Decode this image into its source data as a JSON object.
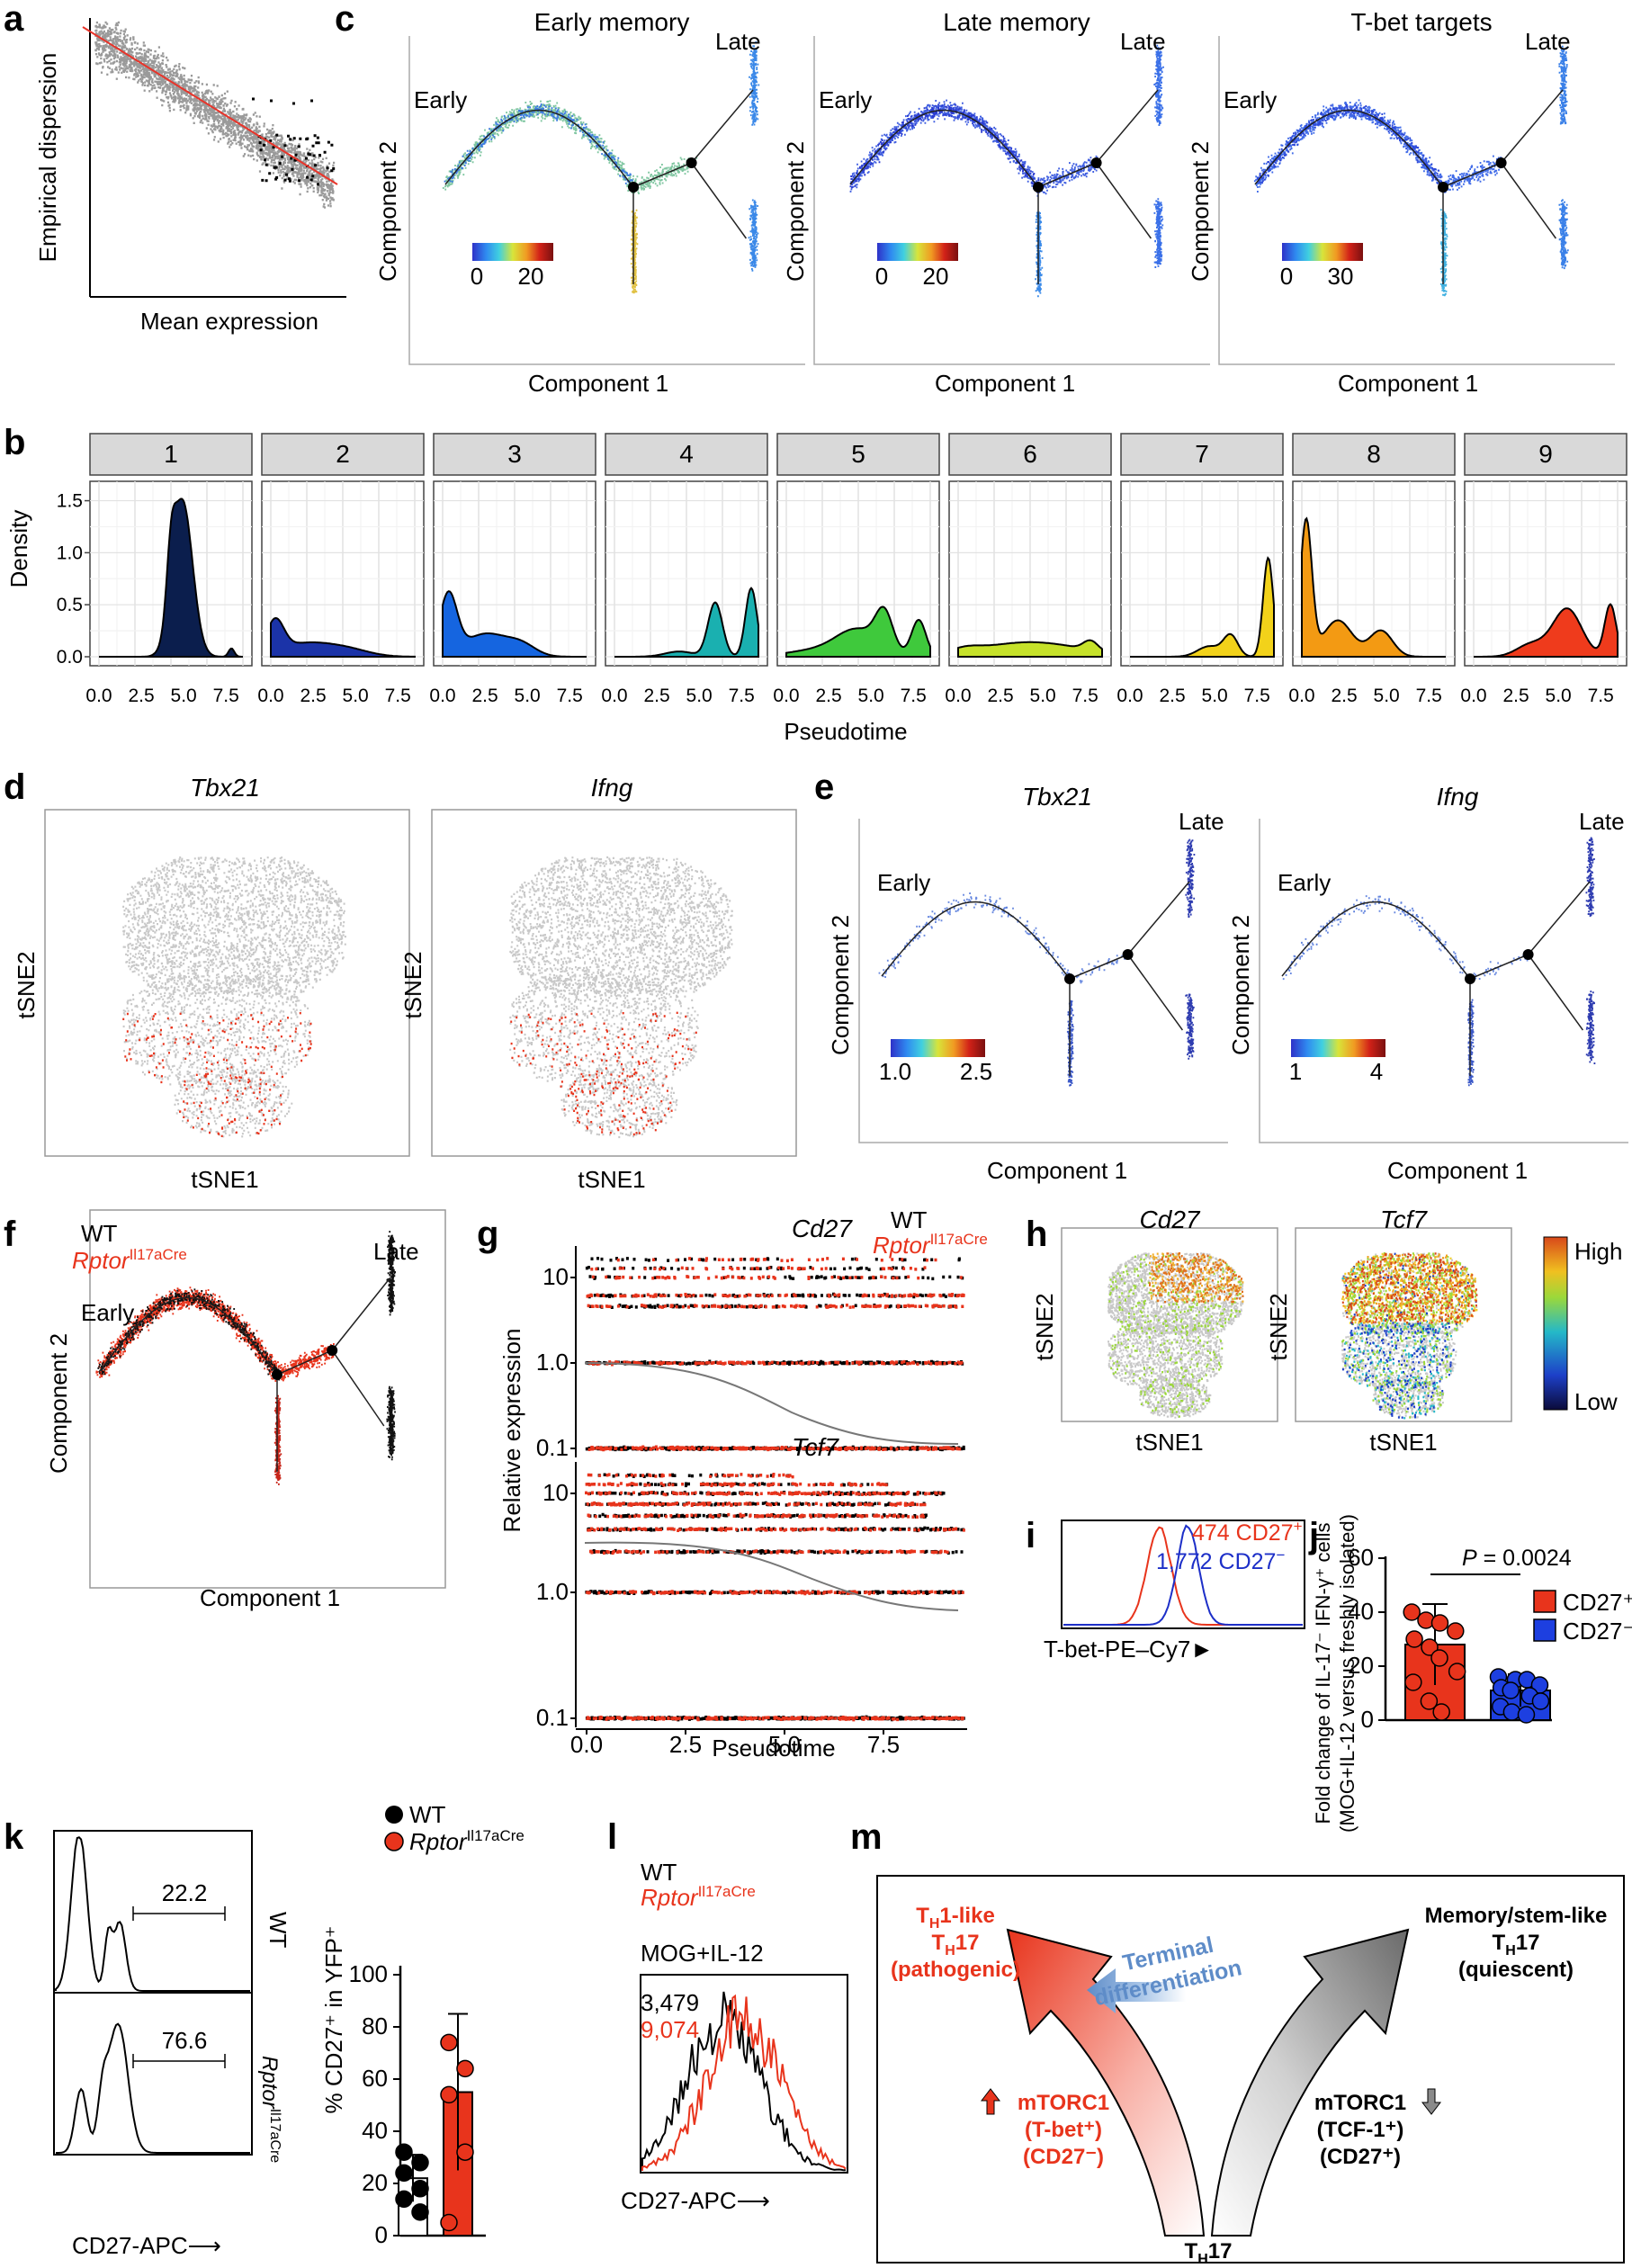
{
  "panel_letters": [
    "a",
    "b",
    "c",
    "d",
    "e",
    "f",
    "g",
    "h",
    "i",
    "j",
    "k",
    "l",
    "m"
  ],
  "panel_a": {
    "ylabel": "Empirical dispersion",
    "xlabel": "Mean expression"
  },
  "panel_c": {
    "plots": [
      {
        "title": "Early memory",
        "scale_min": "0",
        "scale_max": "20"
      },
      {
        "title": "Late memory",
        "scale_min": "0",
        "scale_max": "20"
      },
      {
        "title": "T-bet targets",
        "scale_min": "0",
        "scale_max": "30"
      }
    ],
    "early_label": "Early",
    "late_label": "Late",
    "xlabel": "Component 1",
    "ylabel": "Component 2"
  },
  "panel_b": {
    "facets": [
      "1",
      "2",
      "3",
      "4",
      "5",
      "6",
      "7",
      "8",
      "9"
    ],
    "facet_colors": [
      "#0b1e4d",
      "#1b33a8",
      "#1565e0",
      "#1ab0b0",
      "#3fc93c",
      "#c6e22a",
      "#f2d21a",
      "#f39a13",
      "#ef3b1c"
    ],
    "y_ticks": [
      "0.0",
      "0.5",
      "1.0",
      "1.5"
    ],
    "x_ticks": [
      "0.0",
      "2.5",
      "5.0",
      "7.5"
    ],
    "ylabel": "Density",
    "xlabel": "Pseudotime"
  },
  "panel_d": {
    "plots": [
      {
        "title": "Tbx21"
      },
      {
        "title": "Ifng"
      }
    ],
    "xlabel": "tSNE1",
    "ylabel": "tSNE2"
  },
  "panel_e": {
    "plots": [
      {
        "title": "Tbx21",
        "scale_min": "1.0",
        "scale_max": "2.5"
      },
      {
        "title": "Ifng",
        "scale_min": "1",
        "scale_max": "4"
      }
    ],
    "early_label": "Early",
    "late_label": "Late",
    "xlabel": "Component 1",
    "ylabel": "Component 2"
  },
  "panel_f": {
    "wt_label": "WT",
    "rptor_label": "Rptor",
    "rptor_sup": "Il17aCre",
    "early_label": "Early",
    "late_label": "Late",
    "xlabel": "Component 1",
    "ylabel": "Component 2"
  },
  "panel_g": {
    "gene1": "Cd27",
    "gene2": "Tcf7",
    "wt_label": "WT",
    "rptor_label": "Rptor",
    "rptor_sup": "Il17aCre",
    "y_ticks": [
      "10",
      "1.0",
      "0.1"
    ],
    "x_ticks": [
      "0.0",
      "2.5",
      "5.0",
      "7.5"
    ],
    "ylabel": "Relative expression",
    "xlabel": "Pseudotime"
  },
  "panel_h": {
    "plots": [
      {
        "title": "Cd27"
      },
      {
        "title": "Tcf7"
      }
    ],
    "scale_high": "High",
    "scale_low": "Low",
    "xlabel": "tSNE1",
    "ylabel": "tSNE2"
  },
  "panel_i": {
    "pos_value": "474",
    "pos_label": "CD27",
    "neg_value": "1,772",
    "neg_label": "CD27",
    "xlabel": "T-bet-PE–Cy7"
  },
  "panel_j": {
    "ylabel_line1": "Fold change of IL-17⁻ IFN-γ⁺ cells",
    "ylabel_line2": "(MOG+IL-12 versus freshly isolated)",
    "y_ticks": [
      "0",
      "20",
      "40",
      "60"
    ],
    "p_label": "P",
    "p_value": " = 0.0024",
    "legend": [
      "CD27⁺",
      "CD27⁻"
    ]
  },
  "chart_data": [
    {
      "type": "bar",
      "title": "",
      "categories": [
        "CD27⁺",
        "CD27⁻"
      ],
      "values": [
        28,
        11
      ],
      "errors": [
        15,
        6
      ],
      "ylabel": "Fold change of IL-17⁻ IFN-γ⁺ cells (MOG+IL-12 versus freshly isolated)",
      "ylim": [
        0,
        60
      ],
      "points": [
        [
          40,
          37,
          36,
          33,
          30,
          27,
          23,
          18,
          14,
          7,
          3
        ],
        [
          16,
          15,
          15,
          13,
          12,
          11,
          9,
          7,
          5,
          3,
          2
        ]
      ]
    },
    {
      "type": "bar",
      "title": "",
      "categories": [
        "WT",
        "Rptor Il17aCre"
      ],
      "values": [
        22,
        55
      ],
      "errors": [
        9,
        30
      ],
      "ylabel": "% CD27⁺ in YFP⁺",
      "ylim": [
        0,
        100
      ],
      "points": [
        [
          32,
          28,
          24,
          18,
          14,
          9
        ],
        [
          74,
          64,
          54,
          32,
          5
        ]
      ]
    }
  ],
  "panel_k": {
    "wt_value": "22.2",
    "rptor_value": "76.6",
    "wt_label": "WT",
    "rptor_label": "Rptor",
    "rptor_sup": "Il17aCre",
    "xlabel": "CD27-APC",
    "ylabel": "% CD27⁺ in YFP⁺",
    "y_ticks": [
      "0",
      "20",
      "40",
      "60",
      "80",
      "100"
    ],
    "legend": [
      "WT",
      "Rptor"
    ],
    "legend_sup": "Il17aCre"
  },
  "panel_l": {
    "wt_label": "WT",
    "rptor_label": "Rptor",
    "rptor_sup": "Il17aCre",
    "condition": "MOG+IL-12",
    "wt_value": "3,479",
    "rptor_value": "9,074",
    "xlabel": "CD27-APC"
  },
  "panel_m": {
    "left_title": [
      "T",
      "H",
      "1-like"
    ],
    "left_title2": [
      "T",
      "H",
      "17"
    ],
    "left_title3": "(pathogenic)",
    "right_title": "Memory/stem-like",
    "right_title2": [
      "T",
      "H",
      "17"
    ],
    "right_title3": "(quiescent)",
    "arrow_text1": "Terminal",
    "arrow_text2": "differentiation",
    "left_sub1": "mTORC1",
    "left_sub2": "(T-bet⁺)",
    "left_sub3": "(CD27⁻)",
    "right_sub1": "mTORC1",
    "right_sub2": "(TCF-1⁺)",
    "right_sub3": "(CD27⁺)",
    "bottom": [
      "T",
      "H",
      "17"
    ]
  }
}
